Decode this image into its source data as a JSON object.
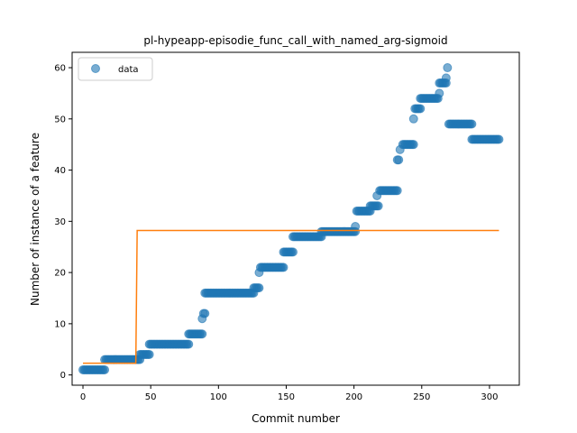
{
  "chart_data": {
    "type": "scatter",
    "title": "pl-hypeapp-episodie_func_call_with_named_arg-sigmoid",
    "xlabel": "Commit number",
    "ylabel": "Number of instance of a feature",
    "xlim": [
      -8,
      322
    ],
    "ylim": [
      -2,
      63
    ],
    "xticks": [
      0,
      50,
      100,
      150,
      200,
      250,
      300
    ],
    "yticks": [
      0,
      10,
      20,
      30,
      40,
      50,
      60
    ],
    "grid": false,
    "legend": {
      "position": "top-left",
      "entries": [
        "data"
      ]
    },
    "colors": {
      "data": "#1f77b4",
      "fit": "#ff7f0e"
    },
    "series": [
      {
        "name": "data",
        "kind": "scatter",
        "segments": [
          {
            "x_start": 0,
            "x_end": 16,
            "y": 1
          },
          {
            "x_start": 16,
            "x_end": 42,
            "y": 3
          },
          {
            "x_start": 42,
            "x_end": 49,
            "y": 4
          },
          {
            "x_start": 49,
            "x_end": 78,
            "y": 6
          },
          {
            "x_start": 78,
            "x_end": 88,
            "y": 8
          },
          {
            "x_start": 90,
            "x_end": 126,
            "y": 16
          },
          {
            "x_start": 126,
            "x_end": 130,
            "y": 17
          },
          {
            "x_start": 131,
            "x_end": 148,
            "y": 21
          },
          {
            "x_start": 148,
            "x_end": 155,
            "y": 24
          },
          {
            "x_start": 155,
            "x_end": 176,
            "y": 27
          },
          {
            "x_start": 176,
            "x_end": 201,
            "y": 28
          },
          {
            "x_start": 202,
            "x_end": 212,
            "y": 32
          },
          {
            "x_start": 212,
            "x_end": 218,
            "y": 33
          },
          {
            "x_start": 219,
            "x_end": 232,
            "y": 36
          },
          {
            "x_start": 236,
            "x_end": 244,
            "y": 45
          },
          {
            "x_start": 245,
            "x_end": 249,
            "y": 52
          },
          {
            "x_start": 249,
            "x_end": 262,
            "y": 54
          },
          {
            "x_start": 263,
            "x_end": 268,
            "y": 57
          },
          {
            "x_start": 270,
            "x_end": 287,
            "y": 49
          },
          {
            "x_start": 287,
            "x_end": 307,
            "y": 46
          }
        ],
        "extra_points": [
          {
            "x": 88,
            "y": 11
          },
          {
            "x": 89,
            "y": 12
          },
          {
            "x": 90,
            "y": 12
          },
          {
            "x": 130,
            "y": 20
          },
          {
            "x": 201,
            "y": 29
          },
          {
            "x": 217,
            "y": 35
          },
          {
            "x": 232,
            "y": 42
          },
          {
            "x": 233,
            "y": 42
          },
          {
            "x": 234,
            "y": 44
          },
          {
            "x": 244,
            "y": 50
          },
          {
            "x": 263,
            "y": 55
          },
          {
            "x": 268,
            "y": 58
          },
          {
            "x": 269,
            "y": 60
          }
        ]
      },
      {
        "name": "",
        "kind": "line",
        "points": [
          {
            "x": 0,
            "y": 2.3
          },
          {
            "x": 39,
            "y": 2.3
          },
          {
            "x": 40,
            "y": 28.2
          },
          {
            "x": 307,
            "y": 28.2
          }
        ]
      }
    ]
  }
}
